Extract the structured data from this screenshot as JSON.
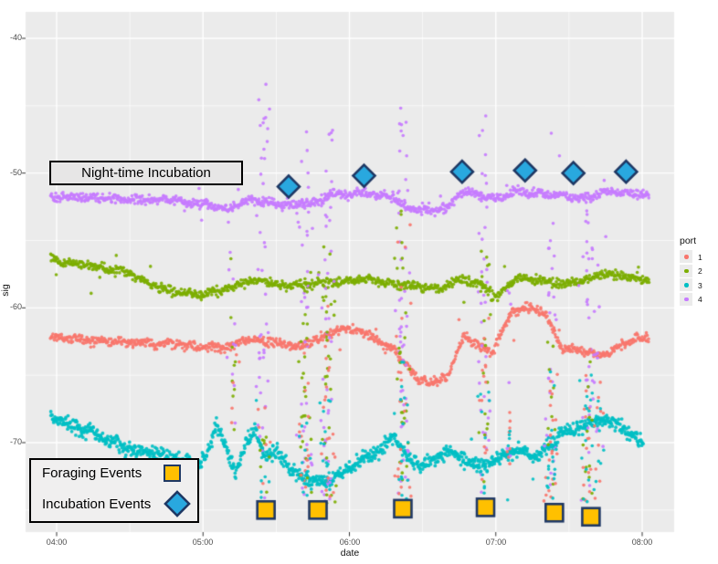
{
  "figure": {
    "background": "#ffffff",
    "panel_background": "#ebebeb",
    "grid_color": "#ffffff"
  },
  "axes": {
    "x": {
      "label": "date"
    },
    "y": {
      "label": "sig"
    }
  },
  "legend": {
    "title": "port",
    "items": [
      {
        "label": "1",
        "color": "#F8766D"
      },
      {
        "label": "2",
        "color": "#7CAE00"
      },
      {
        "label": "3",
        "color": "#00BFC4"
      },
      {
        "label": "4",
        "color": "#C77CFF"
      }
    ]
  },
  "annotations": {
    "night_box": {
      "text": "Night-time Incubation"
    },
    "events_box": {
      "foraging_label": "Foraging Events",
      "incubation_label": "Incubation Events",
      "square_fill": "#FFC000",
      "diamond_fill": "#29A8DF",
      "marker_stroke": "#1F3864"
    }
  },
  "chart_data": {
    "type": "scatter",
    "xlabel": "date",
    "ylabel": "sig",
    "x_tick_labels": [
      "04:00",
      "05:00",
      "06:00",
      "07:00",
      "08:00"
    ],
    "x_tick_hours": [
      4,
      5,
      6,
      7,
      8
    ],
    "x_minor_hours": [
      4.5,
      5.5,
      6.5,
      7.5
    ],
    "y_tick_labels": [
      "-40",
      "-50",
      "-60",
      "-70"
    ],
    "y_ticks": [
      -40,
      -50,
      -60,
      -70
    ],
    "y_minor_ticks": [
      -45,
      -55,
      -65,
      -75
    ],
    "x_range_hours": [
      3.788,
      8.218
    ],
    "y_range": [
      -76.6,
      -38.0
    ],
    "legend_title": "port",
    "series": [
      {
        "name": "1",
        "color": "#F8766D",
        "n": 950,
        "jitter": 0.34,
        "band": [
          [
            3.96,
            -62.2
          ],
          [
            4.3,
            -62.5
          ],
          [
            4.61,
            -62.6
          ],
          [
            4.92,
            -62.8
          ],
          [
            5.14,
            -63.0
          ],
          [
            5.3,
            -62.3
          ],
          [
            5.49,
            -62.6
          ],
          [
            5.67,
            -62.8
          ],
          [
            5.83,
            -62.2
          ],
          [
            5.95,
            -61.5
          ],
          [
            6.08,
            -61.7
          ],
          [
            6.2,
            -62.4
          ],
          [
            6.31,
            -63.1
          ],
          [
            6.47,
            -65.3
          ],
          [
            6.58,
            -65.6
          ],
          [
            6.67,
            -65.1
          ],
          [
            6.78,
            -62.1
          ],
          [
            6.86,
            -62.6
          ],
          [
            6.97,
            -63.4
          ],
          [
            7.11,
            -60.2
          ],
          [
            7.23,
            -60.0
          ],
          [
            7.33,
            -60.3
          ],
          [
            7.45,
            -63.0
          ],
          [
            7.6,
            -63.3
          ],
          [
            7.75,
            -63.4
          ],
          [
            7.86,
            -62.8
          ],
          [
            7.95,
            -62.3
          ],
          [
            8.05,
            -62.1
          ]
        ]
      },
      {
        "name": "2",
        "color": "#7CAE00",
        "n": 1000,
        "jitter": 0.34,
        "band": [
          [
            3.96,
            -56.4
          ],
          [
            4.24,
            -56.9
          ],
          [
            4.49,
            -57.4
          ],
          [
            4.64,
            -58.3
          ],
          [
            4.8,
            -58.8
          ],
          [
            5.02,
            -59.0
          ],
          [
            5.2,
            -58.4
          ],
          [
            5.37,
            -57.9
          ],
          [
            5.55,
            -58.4
          ],
          [
            5.73,
            -58.2
          ],
          [
            5.92,
            -58.1
          ],
          [
            6.11,
            -57.9
          ],
          [
            6.27,
            -58.2
          ],
          [
            6.45,
            -58.4
          ],
          [
            6.61,
            -58.6
          ],
          [
            6.76,
            -57.8
          ],
          [
            6.9,
            -58.4
          ],
          [
            7.01,
            -59.2
          ],
          [
            7.14,
            -57.8
          ],
          [
            7.29,
            -57.9
          ],
          [
            7.45,
            -58.2
          ],
          [
            7.6,
            -58.0
          ],
          [
            7.73,
            -57.5
          ],
          [
            7.92,
            -57.7
          ],
          [
            8.05,
            -57.9
          ]
        ]
      },
      {
        "name": "3",
        "color": "#00BFC4",
        "n": 1150,
        "jitter": 0.52,
        "band": [
          [
            3.96,
            -68.0
          ],
          [
            4.14,
            -68.9
          ],
          [
            4.27,
            -69.4
          ],
          [
            4.42,
            -70.2
          ],
          [
            4.58,
            -70.7
          ],
          [
            4.71,
            -70.9
          ],
          [
            4.85,
            -71.3
          ],
          [
            4.95,
            -71.8
          ],
          [
            5.04,
            -70.7
          ],
          [
            5.09,
            -68.4
          ],
          [
            5.15,
            -70.3
          ],
          [
            5.22,
            -72.2
          ],
          [
            5.3,
            -70.0
          ],
          [
            5.36,
            -69.0
          ],
          [
            5.42,
            -71.0
          ],
          [
            5.52,
            -70.7
          ],
          [
            5.6,
            -72.0
          ],
          [
            5.7,
            -72.7
          ],
          [
            5.83,
            -73.0
          ],
          [
            5.93,
            -72.4
          ],
          [
            6.05,
            -71.5
          ],
          [
            6.14,
            -70.9
          ],
          [
            6.22,
            -70.5
          ],
          [
            6.31,
            -69.5
          ],
          [
            6.39,
            -71.1
          ],
          [
            6.48,
            -71.8
          ],
          [
            6.56,
            -71.4
          ],
          [
            6.66,
            -70.7
          ],
          [
            6.73,
            -70.9
          ],
          [
            6.81,
            -71.4
          ],
          [
            6.89,
            -71.8
          ],
          [
            6.98,
            -71.4
          ],
          [
            7.08,
            -70.9
          ],
          [
            7.18,
            -70.6
          ],
          [
            7.26,
            -71.0
          ],
          [
            7.36,
            -70.3
          ],
          [
            7.45,
            -69.3
          ],
          [
            7.54,
            -69.0
          ],
          [
            7.64,
            -68.6
          ],
          [
            7.74,
            -68.3
          ],
          [
            7.84,
            -68.7
          ],
          [
            7.93,
            -69.5
          ],
          [
            8.01,
            -69.9
          ]
        ]
      },
      {
        "name": "4",
        "color": "#C77CFF",
        "n": 1000,
        "jitter": 0.34,
        "band": [
          [
            3.96,
            -51.8
          ],
          [
            4.36,
            -51.9
          ],
          [
            4.77,
            -52.0
          ],
          [
            5.02,
            -52.3
          ],
          [
            5.17,
            -52.7
          ],
          [
            5.31,
            -52.0
          ],
          [
            5.45,
            -52.2
          ],
          [
            5.61,
            -52.4
          ],
          [
            5.77,
            -52.2
          ],
          [
            5.89,
            -51.6
          ],
          [
            6.11,
            -51.5
          ],
          [
            6.3,
            -51.8
          ],
          [
            6.39,
            -52.6
          ],
          [
            6.55,
            -52.7
          ],
          [
            6.67,
            -52.6
          ],
          [
            6.76,
            -51.4
          ],
          [
            6.89,
            -51.6
          ],
          [
            7.0,
            -52.0
          ],
          [
            7.11,
            -51.4
          ],
          [
            7.33,
            -51.5
          ],
          [
            7.48,
            -51.7
          ],
          [
            7.6,
            -51.9
          ],
          [
            7.73,
            -51.4
          ],
          [
            7.92,
            -51.5
          ],
          [
            8.05,
            -51.6
          ]
        ]
      }
    ],
    "spikes": [
      {
        "t": 5.21,
        "w": 0.02,
        "parts": [
          {
            "port": "4",
            "top": -55,
            "bottom": -71,
            "n": 10
          },
          {
            "port": "2",
            "top": -57,
            "bottom": -70,
            "n": 8
          },
          {
            "port": "1",
            "top": -63,
            "bottom": -70,
            "n": 4
          }
        ]
      },
      {
        "t": 5.41,
        "w": 0.028,
        "parts": [
          {
            "port": "4",
            "top": -42.0,
            "bottom": -74.5,
            "n": 42
          },
          {
            "port": "2",
            "top": -69,
            "bottom": -75,
            "n": 10
          },
          {
            "port": "1",
            "top": -66,
            "bottom": -74,
            "n": 6
          },
          {
            "port": "3",
            "top": -70,
            "bottom": -75,
            "n": 8
          }
        ]
      },
      {
        "t": 5.7,
        "w": 0.026,
        "parts": [
          {
            "port": "4",
            "top": -46.5,
            "bottom": -74,
            "n": 38
          },
          {
            "port": "2",
            "top": -56.5,
            "bottom": -74.5,
            "n": 26
          },
          {
            "port": "1",
            "top": -62.5,
            "bottom": -74,
            "n": 16
          },
          {
            "port": "3",
            "top": -67,
            "bottom": -75,
            "n": 12
          }
        ]
      },
      {
        "t": 5.845,
        "w": 0.032,
        "parts": [
          {
            "port": "4",
            "top": -44.5,
            "bottom": -74.5,
            "n": 46
          },
          {
            "port": "2",
            "top": -55,
            "bottom": -74.5,
            "n": 28
          },
          {
            "port": "1",
            "top": -61,
            "bottom": -74,
            "n": 20
          },
          {
            "port": "3",
            "top": -66,
            "bottom": -75,
            "n": 16
          }
        ]
      },
      {
        "t": 6.36,
        "w": 0.028,
        "parts": [
          {
            "port": "4",
            "top": -42.8,
            "bottom": -74.5,
            "n": 50
          },
          {
            "port": "2",
            "top": -51.5,
            "bottom": -74,
            "n": 30
          },
          {
            "port": "1",
            "top": -53.5,
            "bottom": -74,
            "n": 22
          },
          {
            "port": "3",
            "top": -64,
            "bottom": -75,
            "n": 15
          }
        ]
      },
      {
        "t": 6.92,
        "w": 0.026,
        "parts": [
          {
            "port": "4",
            "top": -45,
            "bottom": -74,
            "n": 36
          },
          {
            "port": "2",
            "top": -53,
            "bottom": -74,
            "n": 18
          },
          {
            "port": "1",
            "top": -60,
            "bottom": -74,
            "n": 14
          },
          {
            "port": "3",
            "top": -66,
            "bottom": -75,
            "n": 12
          }
        ]
      },
      {
        "t": 7.09,
        "w": 0.018,
        "parts": [
          {
            "port": "1",
            "top": -60,
            "bottom": -72,
            "n": 10
          },
          {
            "port": "4",
            "top": -58,
            "bottom": -72,
            "n": 6
          },
          {
            "port": "3",
            "top": -68,
            "bottom": -75,
            "n": 5
          }
        ]
      },
      {
        "t": 7.38,
        "w": 0.026,
        "parts": [
          {
            "port": "4",
            "top": -46.5,
            "bottom": -74,
            "n": 30
          },
          {
            "port": "2",
            "top": -62,
            "bottom": -74,
            "n": 10
          },
          {
            "port": "1",
            "top": -63,
            "bottom": -74.5,
            "n": 20
          },
          {
            "port": "3",
            "top": -63,
            "bottom": -74.5,
            "n": 18
          }
        ]
      },
      {
        "t": 7.625,
        "w": 0.026,
        "parts": [
          {
            "port": "4",
            "top": -47,
            "bottom": -74.5,
            "n": 30
          },
          {
            "port": "2",
            "top": -64,
            "bottom": -74.5,
            "n": 12
          },
          {
            "port": "1",
            "top": -62,
            "bottom": -75,
            "n": 18
          },
          {
            "port": "3",
            "top": -64,
            "bottom": -75,
            "n": 15
          }
        ]
      },
      {
        "t": 7.7,
        "w": 0.022,
        "parts": [
          {
            "port": "4",
            "top": -50,
            "bottom": -73,
            "n": 12
          },
          {
            "port": "1",
            "top": -64,
            "bottom": -74,
            "n": 8
          },
          {
            "port": "3",
            "top": -66,
            "bottom": -74,
            "n": 8
          }
        ]
      }
    ],
    "foraging_events": {
      "marker": "square",
      "fill": "#FFC000",
      "stroke": "#1F3864",
      "times_hours": [
        5.43,
        5.785,
        6.365,
        6.93,
        7.4,
        7.65
      ],
      "sigs": [
        -75.0,
        -75.0,
        -74.9,
        -74.8,
        -75.2,
        -75.5
      ]
    },
    "incubation_events": {
      "marker": "diamond",
      "fill": "#29A8DF",
      "stroke": "#1F3864",
      "times_hours": [
        5.585,
        6.1,
        6.77,
        7.2,
        7.53,
        7.89
      ],
      "sigs": [
        -51.0,
        -50.2,
        -49.9,
        -49.8,
        -50.0,
        -49.9
      ]
    }
  }
}
